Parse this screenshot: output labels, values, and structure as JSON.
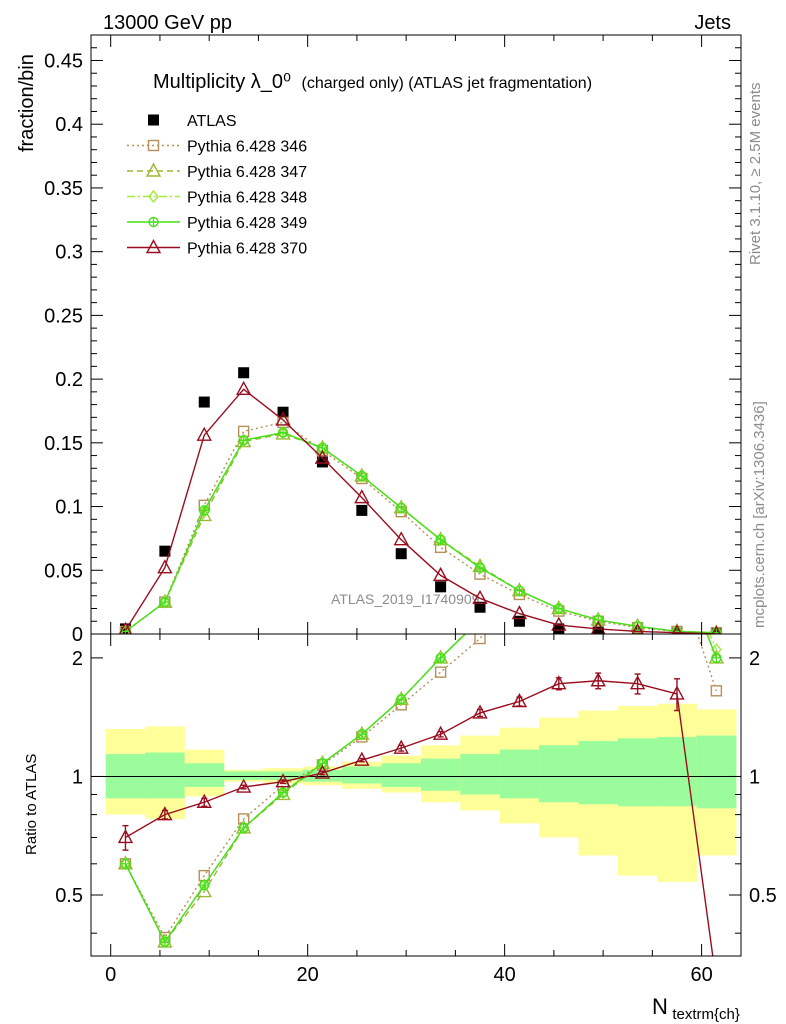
{
  "chart_data": {
    "type": "line",
    "header_left": "13000 GeV pp",
    "header_right": "Jets",
    "title": "Multiplicity λ_0⁰",
    "title_suffix": "(charged only) (ATLAS jet fragmentation)",
    "ylabel": "fraction/bin",
    "xlabel": "N",
    "xlabel_subscript": "textrm{ch}",
    "ratio_ylabel": "Ratio to ATLAS",
    "side_label_top": "Rivet 3.1.10, ≥ 2.5M events",
    "side_label_bottom": "mcplots.cern.ch [arXiv:1306.3436]",
    "watermark": "ATLAS_2019_I1740909",
    "xlim": [
      -2,
      64
    ],
    "ylim": [
      0,
      0.47
    ],
    "ratio_ylim": [
      0.35,
      2.3
    ],
    "x_ticks": [
      "0",
      "20",
      "40",
      "60"
    ],
    "x_tick_values": [
      0,
      20,
      40,
      60
    ],
    "y_ticks": [
      "0",
      "0.05",
      "0.1",
      "0.15",
      "0.2",
      "0.25",
      "0.3",
      "0.35",
      "0.4",
      "0.45"
    ],
    "y_tick_values": [
      0,
      0.05,
      0.1,
      0.15,
      0.2,
      0.25,
      0.3,
      0.35,
      0.4,
      0.45
    ],
    "ratio_ticks": [
      "0.5",
      "1",
      "2"
    ],
    "ratio_tick_values": [
      0.5,
      1,
      2
    ],
    "x": [
      1.5,
      5.5,
      9.5,
      13.5,
      17.5,
      21.5,
      25.5,
      29.5,
      33.5,
      37.5,
      41.5,
      45.5,
      49.5,
      53.5,
      57.5,
      61.5
    ],
    "bin_edges": [
      -0.5,
      3.5,
      7.5,
      11.5,
      15.5,
      19.5,
      23.5,
      27.5,
      31.5,
      35.5,
      39.5,
      43.5,
      47.5,
      51.5,
      55.5,
      59.5,
      63.5
    ],
    "band_stat_low": [
      0.88,
      0.88,
      0.94,
      0.98,
      0.98,
      0.97,
      0.96,
      0.94,
      0.92,
      0.9,
      0.88,
      0.86,
      0.85,
      0.84,
      0.84,
      0.83
    ],
    "band_stat_high": [
      1.14,
      1.15,
      1.08,
      1.03,
      1.03,
      1.04,
      1.06,
      1.08,
      1.11,
      1.14,
      1.17,
      1.2,
      1.23,
      1.25,
      1.26,
      1.27
    ],
    "band_tot_low": [
      0.8,
      0.78,
      0.89,
      0.97,
      0.96,
      0.95,
      0.93,
      0.91,
      0.86,
      0.82,
      0.76,
      0.7,
      0.63,
      0.56,
      0.54,
      0.63
    ],
    "band_tot_high": [
      1.32,
      1.34,
      1.17,
      1.04,
      1.05,
      1.06,
      1.09,
      1.13,
      1.2,
      1.27,
      1.33,
      1.41,
      1.47,
      1.51,
      1.53,
      1.48
    ],
    "series": [
      {
        "name": "ATLAS",
        "color": "#000000",
        "marker": "square-filled",
        "line": "none",
        "values": [
          0.004,
          0.065,
          0.182,
          0.205,
          0.174,
          0.135,
          0.097,
          0.063,
          0.037,
          0.021,
          0.01,
          0.004,
          0.002,
          0.001,
          0.0006,
          0.0003
        ]
      },
      {
        "name": "Pythia 6.428 346",
        "color": "#b5905a",
        "marker": "square-open",
        "line": "dotted",
        "values": [
          0.002,
          0.025,
          0.101,
          0.159,
          0.166,
          0.144,
          0.122,
          0.096,
          0.068,
          0.047,
          0.031,
          0.018,
          0.01,
          0.005,
          0.002,
          0.001
        ],
        "ratio": [
          0.6,
          0.39,
          0.56,
          0.78,
          0.95,
          1.07,
          1.26,
          1.52,
          1.84,
          2.24,
          3.0,
          4.5,
          5.0,
          5.0,
          3.3,
          1.65
        ]
      },
      {
        "name": "Pythia 6.428 347",
        "color": "#99b833",
        "marker": "triangle-open",
        "line": "dashed",
        "values": [
          0.002,
          0.025,
          0.093,
          0.151,
          0.157,
          0.146,
          0.124,
          0.099,
          0.074,
          0.053,
          0.034,
          0.02,
          0.011,
          0.006,
          0.002,
          0.001
        ],
        "ratio": [
          0.6,
          0.38,
          0.51,
          0.74,
          0.9,
          1.08,
          1.28,
          1.57,
          2.0,
          2.52,
          3.4,
          5.0,
          5.0,
          5.0,
          3.6,
          2.0
        ]
      },
      {
        "name": "Pythia 6.428 348",
        "color": "#a3ea3a",
        "marker": "diamond-open",
        "line": "dashdot",
        "values": [
          0.002,
          0.025,
          0.096,
          0.152,
          0.158,
          0.146,
          0.124,
          0.099,
          0.074,
          0.052,
          0.034,
          0.02,
          0.011,
          0.006,
          0.002,
          0.001
        ],
        "ratio": [
          0.6,
          0.38,
          0.53,
          0.74,
          0.91,
          1.08,
          1.28,
          1.57,
          2.0,
          2.5,
          3.4,
          5.0,
          5.0,
          5.0,
          3.6,
          2.1
        ]
      },
      {
        "name": "Pythia 6.428 349",
        "color": "#44e01a",
        "marker": "circle-cross",
        "line": "solid",
        "values": [
          0.002,
          0.025,
          0.097,
          0.152,
          0.158,
          0.146,
          0.124,
          0.099,
          0.074,
          0.052,
          0.034,
          0.02,
          0.011,
          0.006,
          0.002,
          0.001
        ],
        "ratio": [
          0.6,
          0.38,
          0.53,
          0.74,
          0.91,
          1.08,
          1.28,
          1.57,
          2.0,
          2.5,
          3.4,
          5.0,
          5.0,
          5.0,
          3.6,
          2.0
        ]
      },
      {
        "name": "Pythia 6.428 370",
        "color": "#990e1f",
        "marker": "triangle-open",
        "line": "solid",
        "values": [
          0.003,
          0.052,
          0.156,
          0.192,
          0.168,
          0.138,
          0.107,
          0.074,
          0.046,
          0.028,
          0.016,
          0.007,
          0.004,
          0.002,
          0.001,
          0.0001
        ],
        "ratio": [
          0.7,
          0.8,
          0.86,
          0.94,
          0.97,
          1.02,
          1.1,
          1.18,
          1.28,
          1.45,
          1.55,
          1.72,
          1.75,
          1.72,
          1.62,
          0.3
        ],
        "ratio_err": [
          0.05,
          0.02,
          0.02,
          0.01,
          0.01,
          0.01,
          0.01,
          0.02,
          0.02,
          0.03,
          0.04,
          0.06,
          0.08,
          0.1,
          0.15,
          0.0
        ]
      }
    ]
  }
}
